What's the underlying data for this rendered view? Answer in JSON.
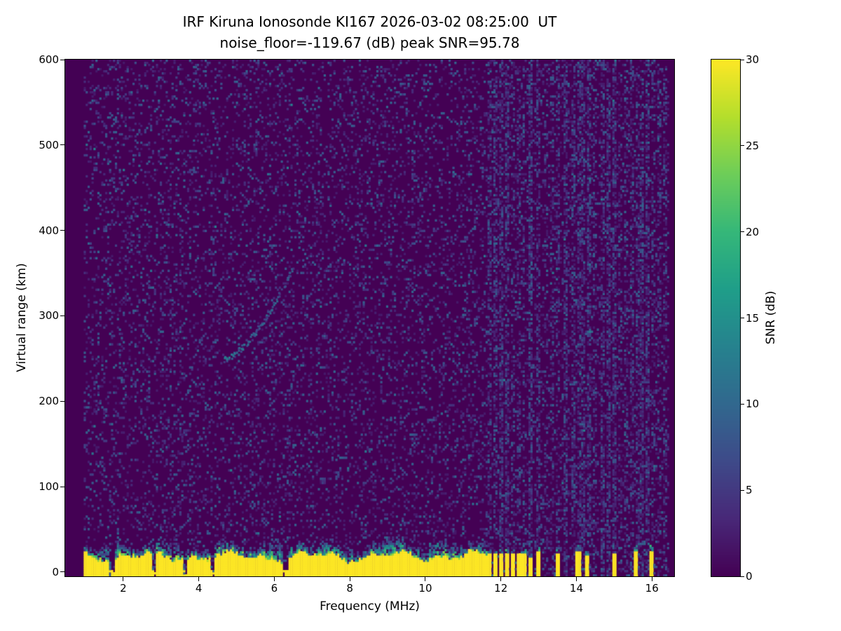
{
  "chart_data": {
    "type": "heatmap",
    "title": "IRF Kiruna Ionosonde KI167 2026-03-02 08:25:00  UT",
    "subtitle": "noise_floor=-119.67 (dB) peak SNR=95.78",
    "station": "IRF Kiruna Ionosonde KI167",
    "timestamp_ut": "2026-03-02 08:25:00",
    "noise_floor_db": -119.67,
    "peak_snr_db": 95.78,
    "xlabel": "Frequency (MHz)",
    "ylabel": "Virtual range (km)",
    "colorbar_label": "SNR (dB)",
    "colormap": "viridis",
    "xlim": [
      0.46,
      16.59
    ],
    "ylim": [
      -5,
      600
    ],
    "xticks": [
      2,
      4,
      6,
      8,
      10,
      12,
      14,
      16
    ],
    "yticks": [
      0,
      100,
      200,
      300,
      400,
      500,
      600
    ],
    "colorbar_ticks": [
      0,
      5,
      10,
      15,
      20,
      25,
      30
    ],
    "colorbar_range": [
      0,
      30
    ],
    "grid": false,
    "legend": "none",
    "data_freq_range_mhz": [
      0.95,
      16.45
    ],
    "features": {
      "background_snr_db": [
        0,
        2
      ],
      "speckle_noise": {
        "density": 0.16,
        "snr_max_db": 10
      },
      "ground_return_band": {
        "freq_continuous_max_mhz": 11.65,
        "solid_top_km_range": [
          12,
          26
        ],
        "speckle_top_km_range": [
          24,
          48
        ],
        "snr_db": 30,
        "notch_freqs_mhz": [
          1.7,
          2.8,
          3.65,
          4.35,
          6.3
        ]
      },
      "interference_bars": {
        "freqs_mhz": [
          11.7,
          11.85,
          12.0,
          12.15,
          12.3,
          12.45,
          12.6,
          12.8,
          13.0,
          13.5,
          14.05,
          14.3,
          15.0,
          15.55,
          16.0
        ],
        "top_km_range": [
          17,
          26
        ],
        "snr_db": 30
      },
      "noise_columns": {
        "freqs_mhz": [
          11.7,
          11.85,
          12.0,
          12.15,
          12.3,
          12.45,
          12.6,
          12.8,
          13.0,
          13.2,
          13.35,
          13.5,
          13.7,
          13.9,
          14.05,
          14.2,
          14.35,
          14.5,
          14.7,
          14.85,
          15.0,
          15.15,
          15.3,
          15.45,
          15.6,
          15.75,
          15.9,
          16.05,
          16.2,
          16.35
        ],
        "snr_max_db": 9
      },
      "echo_trace": {
        "freq_start_mhz": 4.65,
        "freq_end_mhz": 6.45,
        "range_start_km": 250,
        "range_end_km": 355,
        "snr_db_range": [
          5,
          14
        ]
      }
    },
    "viridis_stops": [
      [
        68,
        1,
        84
      ],
      [
        72,
        40,
        120
      ],
      [
        62,
        74,
        137
      ],
      [
        49,
        104,
        142
      ],
      [
        38,
        130,
        142
      ],
      [
        31,
        158,
        137
      ],
      [
        53,
        183,
        121
      ],
      [
        109,
        205,
        89
      ],
      [
        180,
        222,
        44
      ],
      [
        253,
        231,
        37
      ]
    ],
    "colors": {
      "figure_background": "#ffffff",
      "text": "#000000",
      "heatmap_background": "#440154",
      "peak": "#fde725"
    }
  }
}
